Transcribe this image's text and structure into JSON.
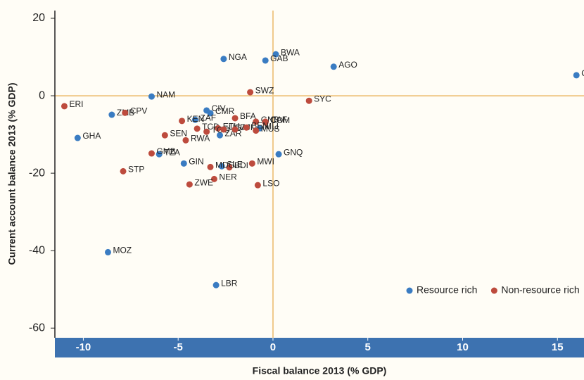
{
  "chart_data": {
    "type": "scatter",
    "x_label": "Fiscal balance 2013 (% GDP)",
    "y_label": "Current account balance 2013 (% GDP)",
    "xlim": [
      -11.5,
      16.4
    ],
    "ylim": [
      -62.5,
      22
    ],
    "xticks": [
      -10,
      -5,
      0,
      5,
      10,
      15
    ],
    "yticks": [
      20,
      0,
      -20,
      -40,
      -60
    ],
    "legend": "lower right",
    "series": [
      {
        "name": "Resource rich",
        "color": "#3a7cc2",
        "labels": [
          "NGA",
          "BWA",
          "GAB",
          "AGO",
          "COG",
          "NAM",
          "ZMB",
          "GHA",
          "CIV",
          "CMR",
          "ZAF",
          "TZA",
          "GIN",
          "SLE",
          "ZAR",
          "MLI",
          "GNQ",
          "MOZ",
          "LBR"
        ],
        "x": [
          -2.6,
          0.15,
          -0.4,
          3.2,
          16.0,
          -6.4,
          -8.5,
          -10.3,
          -3.5,
          -3.3,
          -4.1,
          -6.0,
          -4.7,
          -2.7,
          -2.8,
          -0.7,
          0.3,
          -8.7,
          -3.0
        ],
        "values": [
          9.5,
          10.7,
          9.1,
          7.5,
          5.3,
          -0.2,
          -4.9,
          -10.9,
          -3.8,
          -4.5,
          -6.2,
          -15.1,
          -17.5,
          -18.2,
          -10.2,
          -8.4,
          -15.1,
          -40.4,
          -48.9
        ]
      },
      {
        "name": "Non-resource rich",
        "color": "#bd4b3d",
        "labels": [
          "ERI",
          "CPV",
          "SWZ",
          "SYC",
          "KEN",
          "BFA",
          "GNB",
          "CAF",
          "COM",
          "SEN",
          "RWA",
          "GMB",
          "TCD",
          "ETH",
          "TGO",
          "UGA",
          "DJI",
          "BEN",
          "MUS",
          "STP",
          "BDI",
          "MDG",
          "MWI",
          "NER",
          "ZWE",
          "LSO"
        ],
        "x": [
          -11.0,
          -7.8,
          -1.2,
          1.9,
          -4.8,
          -2.0,
          -0.9,
          -0.4,
          -0.4,
          -5.7,
          -4.6,
          -6.4,
          -4.0,
          -2.9,
          -3.5,
          -2.6,
          -2.0,
          -1.4,
          -0.9,
          -7.9,
          -2.3,
          -3.3,
          -1.1,
          -3.1,
          -4.4,
          -0.8
        ],
        "values": [
          -2.7,
          -4.4,
          0.9,
          -1.3,
          -6.5,
          -5.8,
          -6.7,
          -6.7,
          -6.9,
          -10.2,
          -11.5,
          -14.9,
          -8.5,
          -8.4,
          -9.3,
          -8.7,
          -8.7,
          -8.2,
          -9.0,
          -19.5,
          -18.5,
          -18.4,
          -17.5,
          -21.5,
          -22.9,
          -23.1
        ]
      }
    ]
  }
}
